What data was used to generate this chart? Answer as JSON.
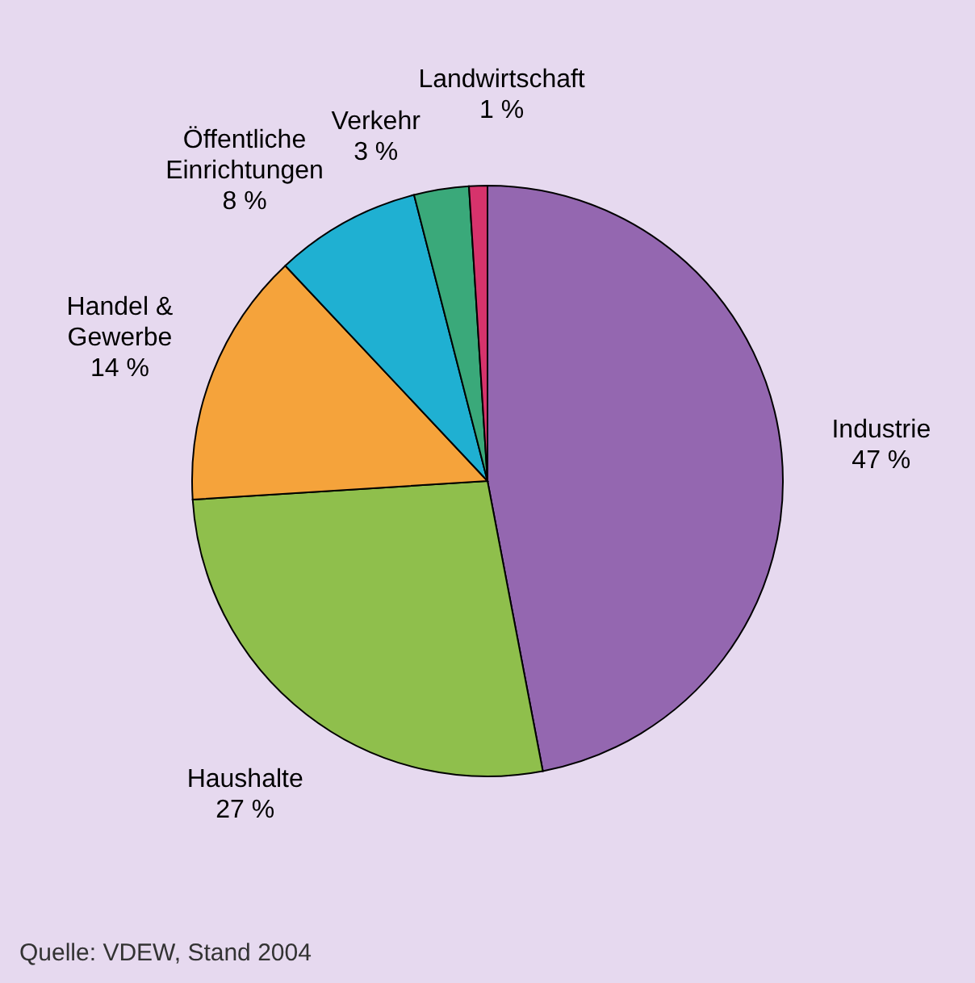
{
  "chart_data": {
    "type": "pie",
    "categories": [
      "Industrie",
      "Haushalte",
      "Handel & Gewerbe",
      "Öffentliche Einrichtungen",
      "Verkehr",
      "Landwirtschaft"
    ],
    "values": [
      47,
      27,
      14,
      8,
      3,
      1
    ],
    "value_labels": [
      "47 %",
      "27 %",
      "14 %",
      "8 %",
      "3 %",
      "1 %"
    ],
    "colors": [
      "#9467b0",
      "#8fbf4c",
      "#f5a33b",
      "#1fb0d2",
      "#3aa97a",
      "#d6336c"
    ],
    "annotations": [
      "Quelle: VDEW, Stand 2004"
    ]
  }
}
